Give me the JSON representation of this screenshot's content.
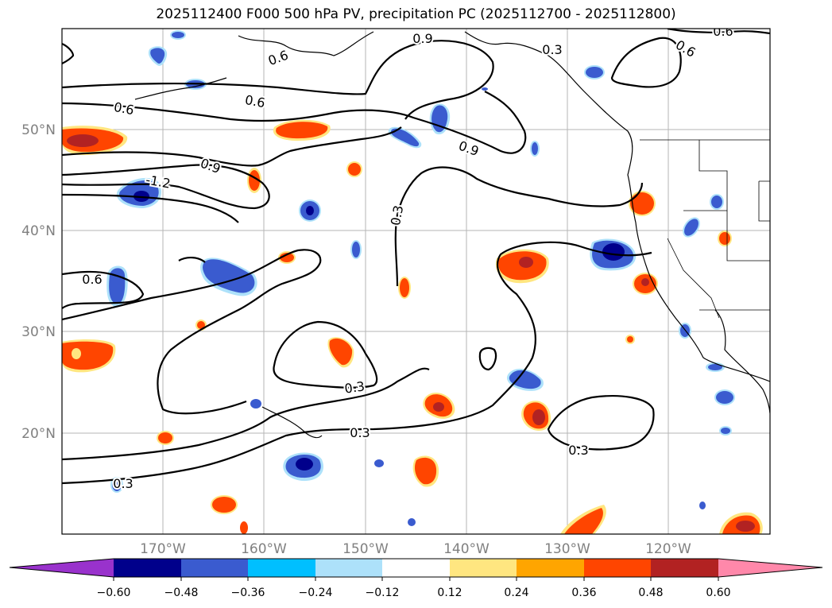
{
  "title": "2025112400 F000 500 hPa PV, precipitation PC (2025112700 - 2025112800)",
  "lat_labels": [
    "20°N",
    "30°N",
    "40°N",
    "50°N"
  ],
  "lon_labels": [
    "170°W",
    "160°W",
    "150°W",
    "140°W",
    "130°W",
    "120°W"
  ],
  "contour_labels": {
    "c1": "0.9",
    "c2": "0.3",
    "c3": "0.6",
    "c4": "0.6",
    "c5": "0.6",
    "c6": "0.6",
    "c7": "0.9",
    "c8": "-1.2",
    "c9": "0.9",
    "c10": "0.3",
    "c11": "0.6",
    "c12": "0.6",
    "c13": "0.3",
    "c14": "0.3",
    "c15": "0.3",
    "c16": "0.3"
  },
  "colorbar": {
    "ticks": [
      "−0.60",
      "−0.48",
      "−0.36",
      "−0.24",
      "−0.12",
      "0.12",
      "0.24",
      "0.36",
      "0.48",
      "0.60"
    ],
    "colors": [
      "#9932CC",
      "#00008B",
      "#3A5BCF",
      "#00BFFF",
      "#ADE1FA",
      "#FFFFFF",
      "#FFE680",
      "#FFA500",
      "#FF4500",
      "#B22222",
      "#FF88AA"
    ]
  }
}
